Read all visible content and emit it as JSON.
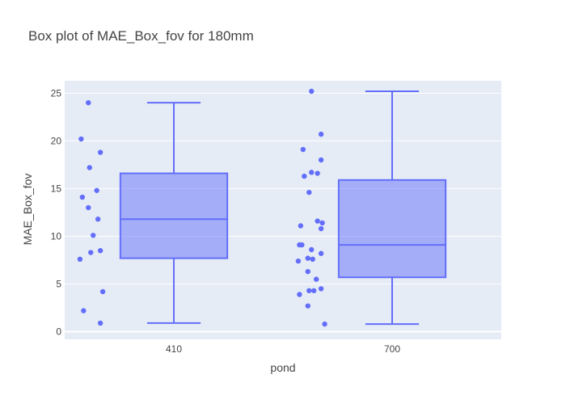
{
  "chart_data": {
    "type": "box",
    "title": "Box plot of MAE_Box_fov for 180mm",
    "xlabel": "pond",
    "ylabel": "MAE_Box_fov",
    "categories": [
      "410",
      "700"
    ],
    "ylim": [
      -0.8,
      26.3
    ],
    "yticks": [
      0,
      5,
      10,
      15,
      20,
      25
    ],
    "grid": true,
    "colors": {
      "plot_bg": "#E5ECF6",
      "grid": "#ffffff",
      "box_line": "#636EFA",
      "box_fill": "rgba(99,110,250,0.5)",
      "points": "#636EFA"
    },
    "series": [
      {
        "category": "410",
        "min": 0.9,
        "q1": 7.7,
        "median": 11.8,
        "q3": 16.6,
        "max": 24.0,
        "points": [
          {
            "y": 24.0,
            "jitter": 0.35
          },
          {
            "y": 20.2,
            "jitter": 0.05
          },
          {
            "y": 18.8,
            "jitter": 0.85
          },
          {
            "y": 17.2,
            "jitter": 0.4
          },
          {
            "y": 14.8,
            "jitter": 0.7
          },
          {
            "y": 14.1,
            "jitter": 0.1
          },
          {
            "y": 13.0,
            "jitter": 0.35
          },
          {
            "y": 11.8,
            "jitter": 0.75
          },
          {
            "y": 10.1,
            "jitter": 0.55
          },
          {
            "y": 8.5,
            "jitter": 0.85
          },
          {
            "y": 8.3,
            "jitter": 0.45
          },
          {
            "y": 7.6,
            "jitter": 0.0
          },
          {
            "y": 4.2,
            "jitter": 0.95
          },
          {
            "y": 2.2,
            "jitter": 0.15
          },
          {
            "y": 0.9,
            "jitter": 0.85
          }
        ]
      },
      {
        "category": "700",
        "min": 0.8,
        "q1": 5.7,
        "median": 9.1,
        "q3": 15.9,
        "max": 25.2,
        "points": [
          {
            "y": 25.2,
            "jitter": 0.55
          },
          {
            "y": 20.7,
            "jitter": 0.95
          },
          {
            "y": 19.1,
            "jitter": 0.2
          },
          {
            "y": 18.0,
            "jitter": 0.95
          },
          {
            "y": 16.7,
            "jitter": 0.55
          },
          {
            "y": 16.6,
            "jitter": 0.8
          },
          {
            "y": 16.3,
            "jitter": 0.25
          },
          {
            "y": 14.6,
            "jitter": 0.45
          },
          {
            "y": 11.6,
            "jitter": 0.8
          },
          {
            "y": 11.4,
            "jitter": 1.0
          },
          {
            "y": 11.1,
            "jitter": 0.1
          },
          {
            "y": 10.8,
            "jitter": 0.95
          },
          {
            "y": 9.1,
            "jitter": 0.05
          },
          {
            "y": 9.1,
            "jitter": 0.15
          },
          {
            "y": 8.6,
            "jitter": 0.55
          },
          {
            "y": 8.2,
            "jitter": 0.95
          },
          {
            "y": 7.7,
            "jitter": 0.4
          },
          {
            "y": 7.6,
            "jitter": 0.6
          },
          {
            "y": 7.4,
            "jitter": 0.0
          },
          {
            "y": 6.3,
            "jitter": 0.4
          },
          {
            "y": 5.5,
            "jitter": 0.75
          },
          {
            "y": 4.5,
            "jitter": 0.95
          },
          {
            "y": 4.3,
            "jitter": 0.45
          },
          {
            "y": 4.3,
            "jitter": 0.65
          },
          {
            "y": 3.9,
            "jitter": 0.05
          },
          {
            "y": 2.7,
            "jitter": 0.4
          },
          {
            "y": 0.8,
            "jitter": 1.1
          }
        ]
      }
    ]
  }
}
